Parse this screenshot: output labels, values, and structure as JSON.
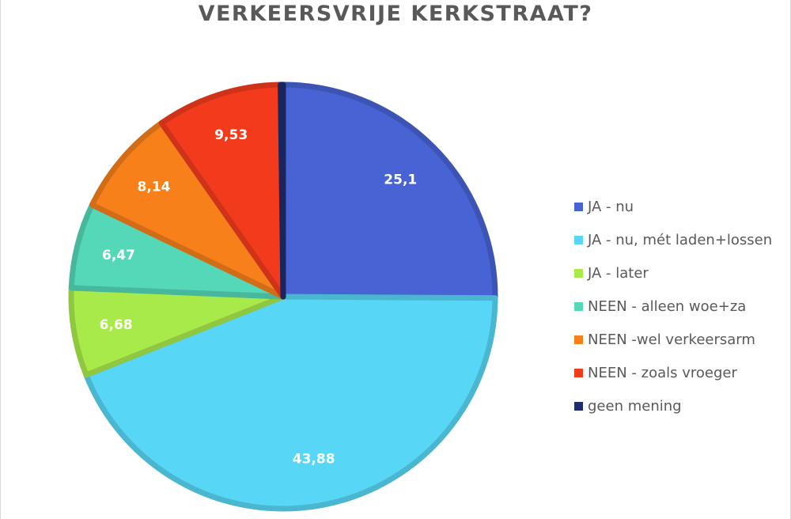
{
  "chart_data": {
    "type": "pie",
    "title": "VERKEERSVRIJE KERKSTRAAT?",
    "categories": [
      "JA - nu",
      "JA - nu, mét laden+lossen",
      "JA - later",
      "NEEN - alleen woe+za",
      "NEEN -wel verkeersarm",
      "NEEN - zoals vroeger",
      "geen mening"
    ],
    "values": [
      25.1,
      43.88,
      6.68,
      6.47,
      8.14,
      9.53,
      0.2
    ],
    "data_labels": [
      "25,1",
      "43,88",
      "6,68",
      "6,47",
      "8,14",
      "9,53",
      ""
    ],
    "colors": [
      "#4763D4",
      "#57D6F5",
      "#A9EA4B",
      "#55D8B7",
      "#F7801B",
      "#F23B1D",
      "#1F2C6E"
    ],
    "legend_position": "right"
  }
}
